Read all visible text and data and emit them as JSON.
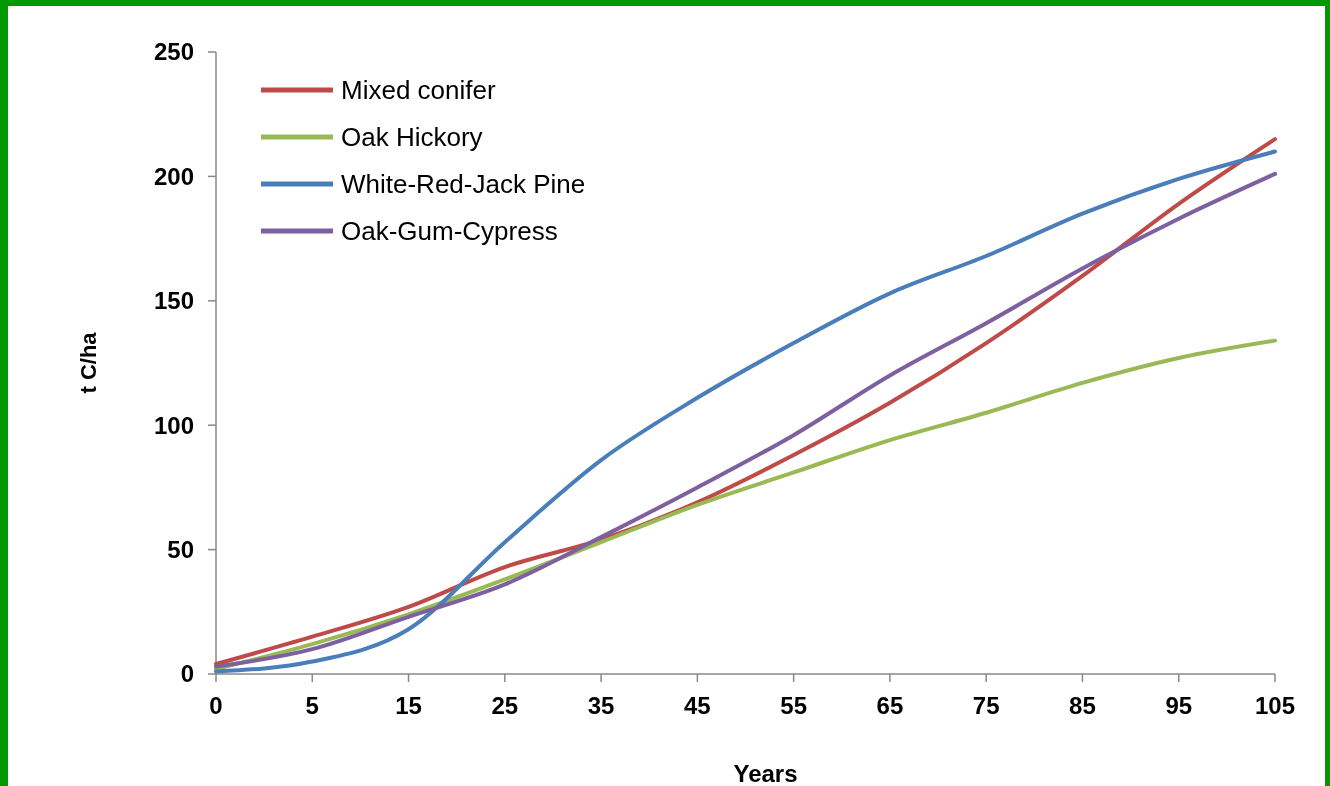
{
  "chart_data": {
    "type": "line",
    "xlabel": "Years",
    "ylabel": "t C/ha",
    "categories": [
      "0",
      "5",
      "15",
      "25",
      "35",
      "45",
      "55",
      "65",
      "75",
      "85",
      "95",
      "105"
    ],
    "series": [
      {
        "name": "Mixed conifer",
        "color": "#be4b48",
        "values": [
          4,
          15,
          27,
          43,
          54,
          69,
          88,
          109,
          133,
          160,
          189,
          215
        ]
      },
      {
        "name": "Oak Hickory",
        "color": "#98b954",
        "values": [
          2,
          12,
          24,
          38,
          53,
          68,
          81,
          94,
          105,
          117,
          127,
          134
        ]
      },
      {
        "name": "White-Red-Jack Pine",
        "color": "#4a7ebb",
        "values": [
          1,
          5,
          18,
          53,
          86,
          111,
          133,
          153,
          168,
          185,
          199,
          210
        ]
      },
      {
        "name": "Oak-Gum-Cypress",
        "color": "#7d60a0",
        "values": [
          3,
          10,
          23,
          36,
          55,
          75,
          96,
          120,
          141,
          163,
          183,
          201
        ]
      }
    ],
    "ylim": [
      0,
      250
    ],
    "yticks": [
      0,
      50,
      100,
      150,
      200,
      250
    ],
    "legend": "top left",
    "grid": false,
    "marker": "none",
    "line_style": "solid"
  }
}
